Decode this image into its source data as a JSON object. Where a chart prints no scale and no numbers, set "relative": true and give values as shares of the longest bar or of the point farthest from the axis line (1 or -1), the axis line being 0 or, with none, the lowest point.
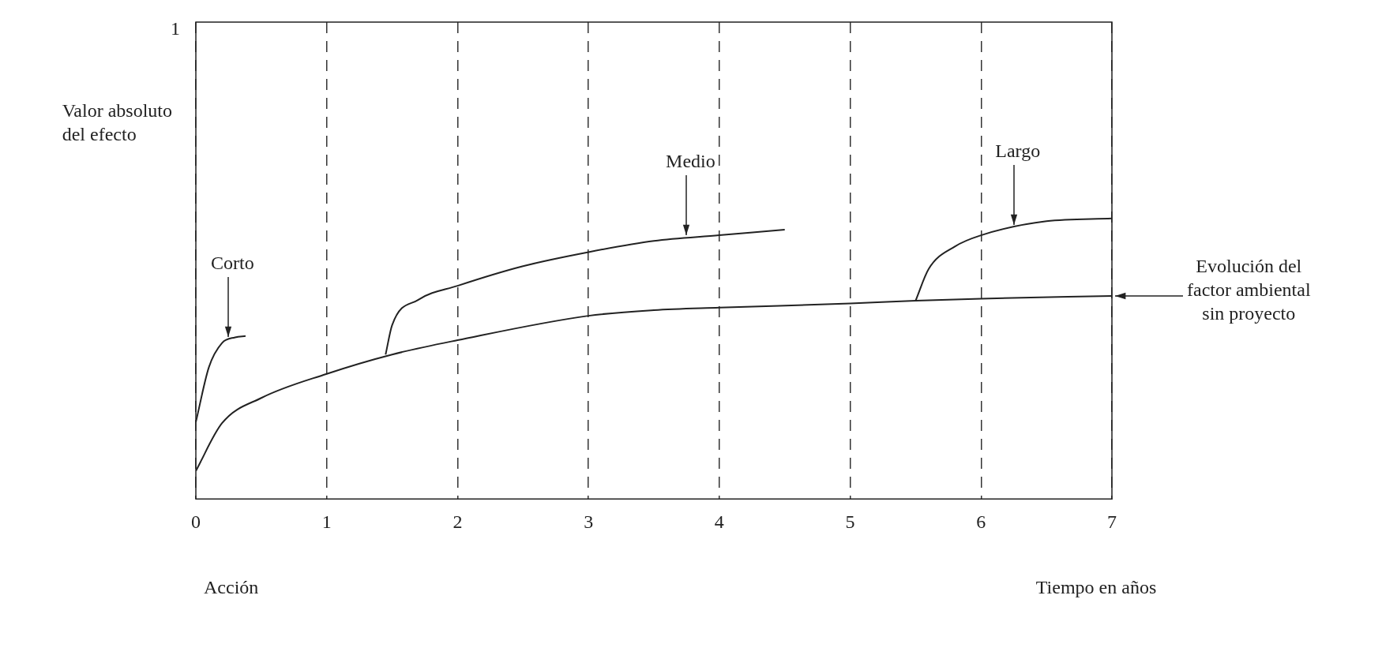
{
  "chart_data": {
    "type": "line",
    "relative": true,
    "xlabel": "Tiempo en años",
    "ylabel": "Valor absoluto del efecto",
    "xlim": [
      0,
      7
    ],
    "xticks": [
      0,
      1,
      2,
      3,
      4,
      5,
      6,
      7
    ],
    "grid": "x",
    "line_style": "solid",
    "marker": "none",
    "annotations": [
      "1",
      "Acción"
    ],
    "series": [
      {
        "name": "Evolución del factor ambiental sin proyecto",
        "color": "#222222",
        "x": [
          0,
          0.2,
          0.5,
          1,
          1.5,
          2,
          3,
          3.5,
          4,
          5,
          5.5,
          6,
          7
        ],
        "values": [
          0.1,
          0.27,
          0.36,
          0.446,
          0.515,
          0.566,
          0.653,
          0.673,
          0.682,
          0.697,
          0.707,
          0.714,
          0.724
        ]
      },
      {
        "name": "Corto",
        "color": "#222222",
        "x": [
          0,
          0.1,
          0.2,
          0.3,
          0.38
        ],
        "values": [
          0.274,
          0.47,
          0.556,
          0.576,
          0.581
        ]
      },
      {
        "name": "Medio",
        "color": "#222222",
        "x": [
          1.45,
          1.5,
          1.7,
          2,
          2.5,
          3,
          3.5,
          4,
          4.5
        ],
        "values": [
          0.515,
          0.62,
          0.71,
          0.76,
          0.83,
          0.88,
          0.92,
          0.94,
          0.96
        ]
      },
      {
        "name": "Largo",
        "color": "#222222",
        "x": [
          5.5,
          5.6,
          5.8,
          6,
          6.5,
          7
        ],
        "values": [
          0.707,
          0.82,
          0.9,
          0.94,
          0.99,
          1
        ]
      }
    ]
  }
}
